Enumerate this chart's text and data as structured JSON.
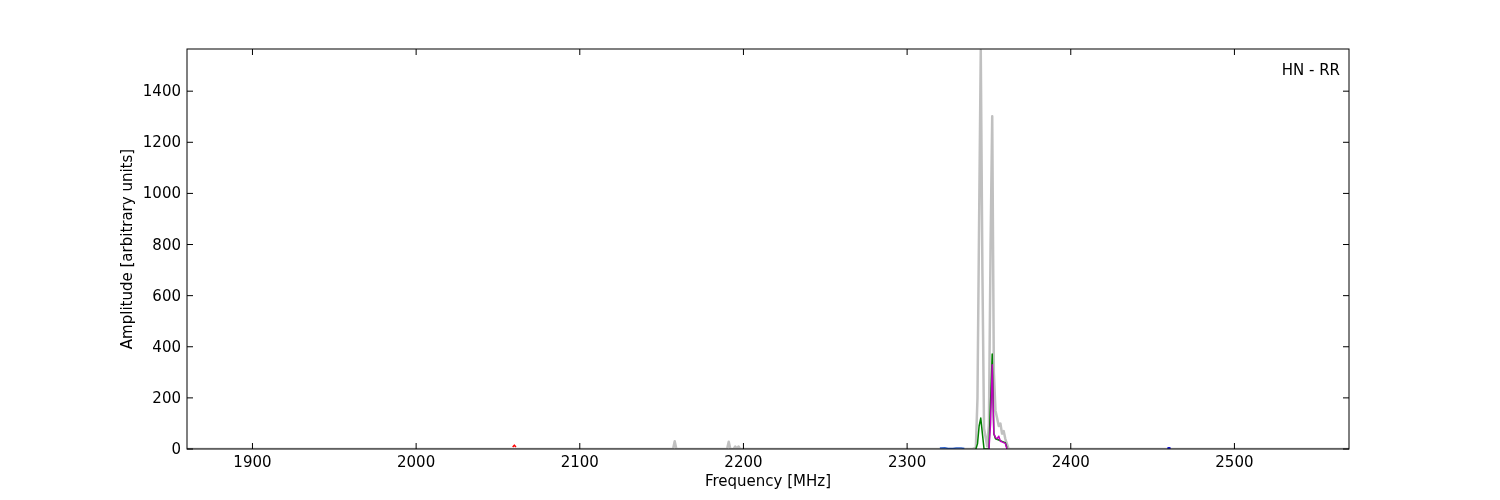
{
  "chart_data": {
    "type": "line",
    "xlabel": "Frequency [MHz]",
    "ylabel": "Amplitude [arbitrary units]",
    "annotations": [
      "HN - RR"
    ],
    "xlim": [
      1860,
      2570
    ],
    "ylim": [
      0,
      1565
    ],
    "xticks": [
      1900,
      2000,
      2100,
      2200,
      2300,
      2400,
      2500
    ],
    "yticks": [
      0,
      200,
      400,
      600,
      800,
      1000,
      1200,
      1400
    ],
    "grid": false,
    "series": [
      {
        "color": "#c0c0c0",
        "x": [
          1860,
          2150,
          2157,
          2158,
          2159,
          2185,
          2190,
          2191,
          2192,
          2194,
          2195,
          2196,
          2197,
          2198,
          2340,
          2342,
          2343,
          2344,
          2345,
          2346,
          2347,
          2349,
          2350,
          2351,
          2352,
          2353,
          2354,
          2355,
          2356,
          2357,
          2358,
          2359,
          2360,
          2361,
          2362,
          2570
        ],
        "values": [
          0,
          0,
          0,
          30,
          0,
          0,
          0,
          28,
          0,
          0,
          10,
          0,
          10,
          0,
          0,
          5,
          200,
          900,
          1560,
          700,
          80,
          10,
          100,
          800,
          1302,
          300,
          150,
          120,
          90,
          100,
          60,
          70,
          40,
          20,
          0,
          0
        ]
      },
      {
        "color": "#008000",
        "x": [
          2342,
          2343,
          2344,
          2345,
          2346,
          2347,
          2350,
          2352,
          2353,
          2354,
          2356,
          2358,
          2360,
          2361
        ],
        "values": [
          0,
          20,
          90,
          121,
          60,
          0,
          0,
          372,
          60,
          40,
          35,
          30,
          25,
          5
        ]
      },
      {
        "color": "#bf00bf",
        "x": [
          2350,
          2351,
          2352,
          2353,
          2354,
          2355,
          2356,
          2357,
          2358,
          2359,
          2360,
          2361
        ],
        "values": [
          0,
          100,
          330,
          60,
          45,
          40,
          50,
          30,
          28,
          25,
          22,
          0
        ]
      },
      {
        "color": "#ff0000",
        "x": [
          2059,
          2060,
          2061
        ],
        "values": [
          8,
          15,
          8
        ]
      },
      {
        "color": "#3366cc",
        "x": [
          2320,
          2323,
          2325,
          2328,
          2330,
          2333,
          2335
        ],
        "values": [
          4,
          5,
          2,
          2,
          4,
          4,
          2
        ]
      },
      {
        "color": "#0000cc",
        "x": [
          2459,
          2460,
          2461
        ],
        "values": [
          3,
          5,
          3
        ]
      }
    ]
  }
}
